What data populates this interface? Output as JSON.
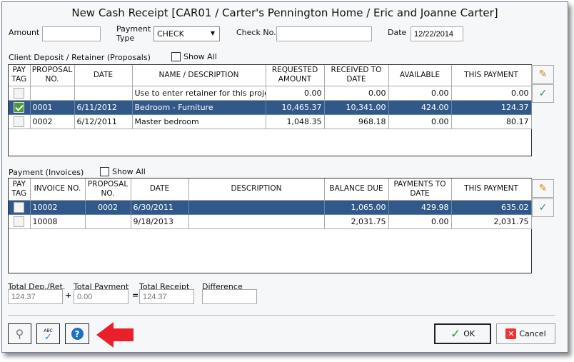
{
  "window": {
    "title": "New Cash Receipt [CAR01 / Carter's Pennington Home / Eric and Joanne Carter]"
  },
  "form": {
    "amount_label": "Amount",
    "amount_value": "",
    "payment_type_label": "Payment Type",
    "payment_type_value": "CHECK",
    "check_no_label": "Check No.",
    "check_no_value": "",
    "date_label": "Date",
    "date_value": "12/22/2014"
  },
  "proposals": {
    "section_label": "Client Deposit / Retainer (Proposals)",
    "show_all_label": "Show All",
    "show_all_checked": false,
    "columns": [
      "PAY TAG",
      "PROPOSAL NO.",
      "DATE",
      "NAME / DESCRIPTION",
      "REQUESTED AMOUNT",
      "RECEIVED TO DATE",
      "AVAILABLE",
      "THIS PAYMENT"
    ],
    "rows": [
      {
        "checked": false,
        "selected": false,
        "proposal_no": "",
        "date": "",
        "name": "Use to enter retainer for this project",
        "requested": "0.00",
        "received": "0.00",
        "available": "0.00",
        "this_payment": "0.00"
      },
      {
        "checked": true,
        "selected": true,
        "proposal_no": "0001",
        "date": "6/11/2012",
        "name": "Bedroom - Furniture",
        "requested": "10,465.37",
        "received": "10,341.00",
        "available": "424.00",
        "this_payment": "124.37"
      },
      {
        "checked": false,
        "selected": false,
        "proposal_no": "0002",
        "date": "6/12/2011",
        "name": "Master bedroom",
        "requested": "1,048.35",
        "received": "968.18",
        "available": "0.00",
        "this_payment": "80.17"
      }
    ]
  },
  "invoices": {
    "section_label": "Payment (Invoices)",
    "show_all_label": "Show All",
    "show_all_checked": false,
    "columns": [
      "PAY TAG",
      "INVOICE NO.",
      "PROPOSAL NO.",
      "DATE",
      "DESCRIPTION",
      "BALANCE DUE",
      "PAYMENTS TO DATE",
      "THIS PAYMENT"
    ],
    "rows": [
      {
        "checked": false,
        "selected": true,
        "invoice_no": "10002",
        "proposal_no": "0002",
        "date": "6/30/2011",
        "description": "",
        "balance_due": "1,065.00",
        "payments": "429.98",
        "this_payment": "635.02"
      },
      {
        "checked": false,
        "selected": false,
        "invoice_no": "10008",
        "proposal_no": "",
        "date": "9/18/2013",
        "description": "",
        "balance_due": "2,031.75",
        "payments": "0.00",
        "this_payment": "2,031.75"
      }
    ]
  },
  "totals": {
    "dep_label": "Total Dep./Ret.",
    "dep_value": "124.37",
    "plus": "+",
    "payment_label": "Total Payment",
    "payment_value": "0.00",
    "equals": "=",
    "receipt_label": "Total Receipt",
    "receipt_value": "124.37",
    "difference_label": "Difference",
    "difference_value": ""
  },
  "buttons": {
    "ok": "OK",
    "cancel": "Cancel",
    "spell_abc": "ABC"
  },
  "colors": {
    "selected_row": "#30598a",
    "arrow": "#e8202a"
  }
}
